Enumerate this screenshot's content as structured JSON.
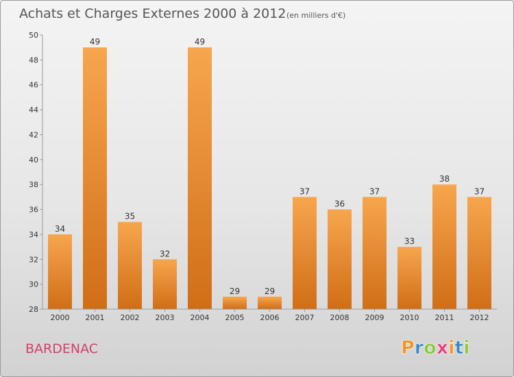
{
  "chart_data": {
    "type": "bar",
    "title": "Achats et Charges Externes 2000 à 2012",
    "subtitle": "(en milliers d'€)",
    "categories": [
      "2000",
      "2001",
      "2002",
      "2003",
      "2004",
      "2005",
      "2006",
      "2007",
      "2008",
      "2009",
      "2010",
      "2011",
      "2012"
    ],
    "values": [
      34,
      49,
      35,
      32,
      49,
      29,
      29,
      37,
      36,
      37,
      33,
      38,
      37
    ],
    "ylim": [
      28,
      50
    ],
    "yticks": [
      28,
      30,
      32,
      34,
      36,
      38,
      40,
      42,
      44,
      46,
      48,
      50
    ],
    "grid": false,
    "bar_color": "#f0943c"
  },
  "place_name": "BARDENAC",
  "logo": {
    "letters": [
      "P",
      "r",
      "o",
      "x",
      "i",
      "t",
      "i"
    ],
    "colors": [
      "#f39322",
      "#3a87c8",
      "#8cc63f",
      "#ec3a7a",
      "#f39322",
      "#3a87c8",
      "#8cc63f"
    ]
  }
}
